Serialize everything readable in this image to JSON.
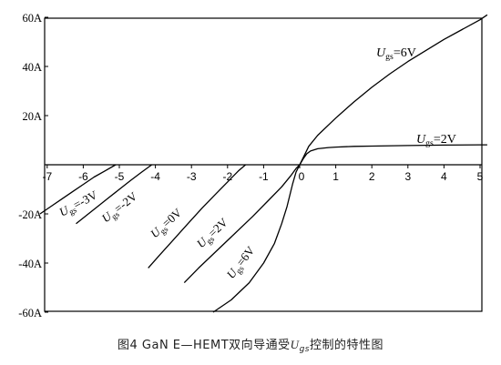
{
  "chart_data": {
    "type": "line",
    "title": "",
    "xlabel": "",
    "ylabel": "",
    "xlim": [
      -7.2,
      5.2
    ],
    "ylim": [
      -60,
      60
    ],
    "x_ticks": [
      {
        "v": -7,
        "label": "-7"
      },
      {
        "v": -6,
        "label": "-6"
      },
      {
        "v": -5,
        "label": "-5"
      },
      {
        "v": -4,
        "label": "-4"
      },
      {
        "v": -3,
        "label": "-3"
      },
      {
        "v": -2,
        "label": "-2"
      },
      {
        "v": -1,
        "label": "-1"
      },
      {
        "v": 0,
        "label": "0"
      },
      {
        "v": 1,
        "label": "1"
      },
      {
        "v": 2,
        "label": "2"
      },
      {
        "v": 3,
        "label": "3"
      },
      {
        "v": 4,
        "label": "4"
      },
      {
        "v": 5,
        "label": "5"
      }
    ],
    "y_ticks": [
      {
        "v": 60,
        "label": "60A"
      },
      {
        "v": 40,
        "label": "40A"
      },
      {
        "v": 20,
        "label": "20A"
      },
      {
        "v": -20,
        "label": "-20A"
      },
      {
        "v": -40,
        "label": "-40A"
      },
      {
        "v": -60,
        "label": "-60A"
      }
    ],
    "grid": false,
    "series": [
      {
        "name": "Ugs=6V",
        "label_var": "U",
        "label_sub": "gs",
        "label_val": "=6V",
        "x": [
          -2.4,
          -1.9,
          -1.4,
          -1.0,
          -0.7,
          -0.5,
          -0.35,
          -0.2,
          -0.1,
          0,
          0.1,
          0.25,
          0.5,
          1,
          1.5,
          2,
          2.5,
          3,
          3.5,
          4,
          4.5,
          5,
          5.2
        ],
        "y": [
          -60,
          -55,
          -48,
          -40,
          -32,
          -24,
          -17,
          -8,
          -3,
          0,
          3,
          7.5,
          12,
          19,
          25.5,
          31.5,
          37,
          42,
          46.5,
          51,
          55,
          59,
          61
        ]
      },
      {
        "name": "Ugs=2V",
        "label_var": "U",
        "label_sub": "gs",
        "label_val": "=2V",
        "x": [
          0,
          0.1,
          0.2,
          0.3,
          0.5,
          0.8,
          1,
          1.5,
          2,
          3,
          4,
          5,
          5.2
        ],
        "y": [
          0,
          2.5,
          4.5,
          5.6,
          6.5,
          7,
          7.2,
          7.5,
          7.6,
          7.8,
          8.0,
          8.1,
          8.1
        ]
      },
      {
        "name": "Ugs=-3V",
        "label_var": "U",
        "label_sub": "gs",
        "label_val": "=-3V",
        "x": [
          -7.2,
          -6.9,
          -6.6,
          -6.3,
          -6.0,
          -5.7,
          -5.4,
          -5.1
        ],
        "y": [
          -20,
          -17,
          -14,
          -11,
          -8,
          -5,
          -2.5,
          0
        ]
      },
      {
        "name": "Ugs=-2V",
        "label_var": "U",
        "label_sub": "gs",
        "label_val": "=-2V",
        "x": [
          -6.2,
          -5.9,
          -5.6,
          -5.3,
          -5.0,
          -4.7,
          -4.4,
          -4.1
        ],
        "y": [
          -24,
          -20.5,
          -17,
          -13.5,
          -10,
          -6.5,
          -3.2,
          0
        ]
      },
      {
        "name": "Ugs=0V",
        "label_var": "U",
        "label_sub": "gs",
        "label_val": "=0V",
        "x": [
          -4.2,
          -3.9,
          -3.5,
          -3.1,
          -2.7,
          -2.3,
          -2.0,
          -1.7,
          -1.5
        ],
        "y": [
          -42,
          -37,
          -30.5,
          -24,
          -17.5,
          -11.5,
          -7,
          -2.5,
          0
        ]
      },
      {
        "name": "Ugs=2V (3rd quadrant)",
        "label_var": "U",
        "label_sub": "gs",
        "label_val": "=2V",
        "x": [
          -3.2,
          -2.8,
          -2.3,
          -1.8,
          -1.3,
          -0.9,
          -0.5,
          -0.25,
          -0.1,
          0
        ],
        "y": [
          -48,
          -42,
          -35,
          -28,
          -21,
          -15,
          -9,
          -4.5,
          -1.5,
          0
        ]
      }
    ]
  },
  "caption": {
    "prefix": "图4   GaN E—HEMT双向导通受",
    "var": "U",
    "sub": "gs",
    "suffix": "控制的特性图"
  }
}
